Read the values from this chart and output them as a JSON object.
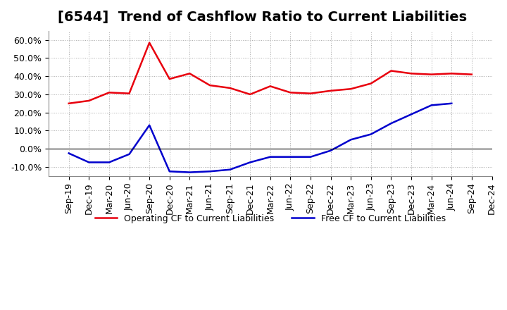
{
  "title": "[6544]  Trend of Cashflow Ratio to Current Liabilities",
  "x_labels": [
    "Sep-19",
    "Dec-19",
    "Mar-20",
    "Jun-20",
    "Sep-20",
    "Dec-20",
    "Mar-21",
    "Jun-21",
    "Sep-21",
    "Dec-21",
    "Mar-22",
    "Jun-22",
    "Sep-22",
    "Dec-22",
    "Mar-23",
    "Jun-23",
    "Sep-23",
    "Dec-23",
    "Mar-24",
    "Jun-24",
    "Sep-24",
    "Dec-24"
  ],
  "operating_cf": [
    0.25,
    0.265,
    0.31,
    0.305,
    0.585,
    0.385,
    0.415,
    0.35,
    0.335,
    0.3,
    0.345,
    0.31,
    0.305,
    0.32,
    0.33,
    0.36,
    0.43,
    0.415,
    0.41,
    0.415,
    0.41,
    null
  ],
  "free_cf": [
    -0.025,
    -0.075,
    -0.075,
    -0.03,
    0.13,
    -0.125,
    -0.13,
    -0.125,
    -0.115,
    -0.075,
    -0.045,
    -0.045,
    -0.045,
    -0.01,
    0.05,
    0.08,
    0.14,
    0.19,
    0.24,
    0.25,
    null,
    null
  ],
  "operating_color": "#e8000d",
  "free_color": "#0000cd",
  "ylim": [
    -0.15,
    0.65
  ],
  "yticks": [
    -0.1,
    0.0,
    0.1,
    0.2,
    0.3,
    0.4,
    0.5,
    0.6
  ],
  "background_color": "#ffffff",
  "grid_color": "#aaaaaa",
  "legend_op": "Operating CF to Current Liabilities",
  "legend_free": "Free CF to Current Liabilities",
  "title_fontsize": 14,
  "axis_fontsize": 9
}
